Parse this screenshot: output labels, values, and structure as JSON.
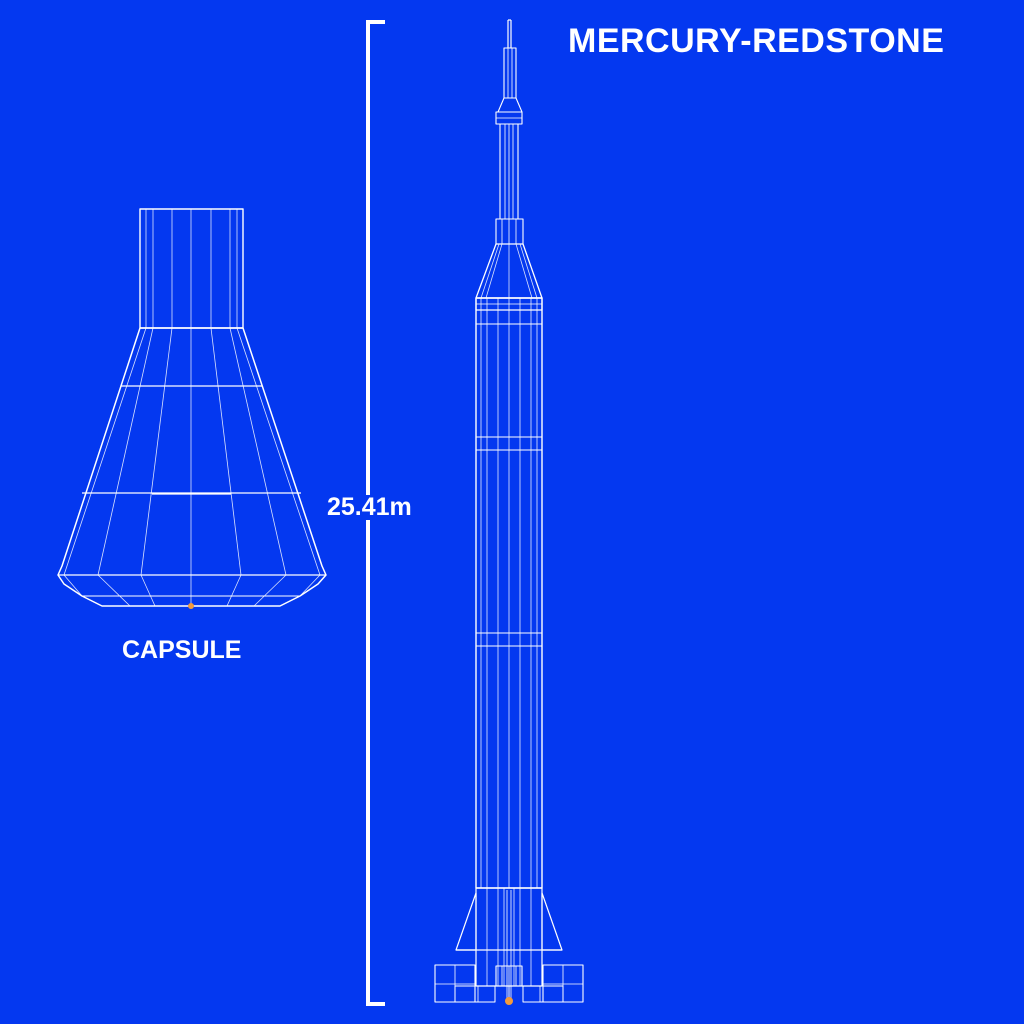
{
  "title": "MERCURY-REDSTONE",
  "height_label": "25.41m",
  "capsule_label": "CAPSULE",
  "colors": {
    "background": "#0438F0",
    "wireframe": "#ffffff",
    "pivot_marker": "#F39A3B"
  }
}
